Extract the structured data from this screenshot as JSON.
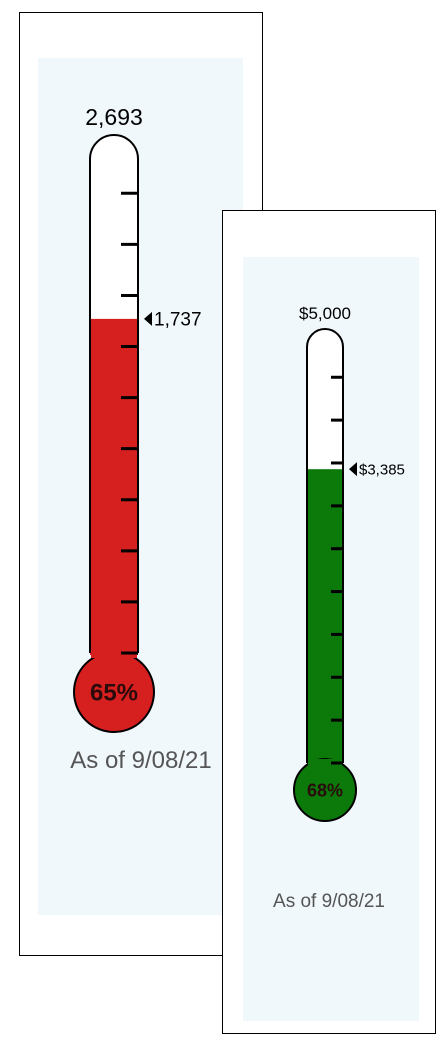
{
  "chart_data": [
    {
      "type": "thermometer",
      "goal": 2693,
      "current": 1737,
      "goal_label": "2,693",
      "current_label": "1,737",
      "percent_label": "65%",
      "as_of": "As of 9/08/21",
      "fill_color": "#d61f1f",
      "tick_count": 10
    },
    {
      "type": "thermometer",
      "goal": 5000,
      "current": 3385,
      "goal_label": "$5,000",
      "current_label": "$3,385",
      "percent_label": "68%",
      "as_of": "As of 9/08/21",
      "fill_color": "#0b7a0b",
      "tick_count": 10
    }
  ]
}
